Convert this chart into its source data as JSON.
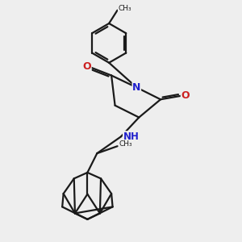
{
  "bg_color": "#eeeeee",
  "bond_color": "#1a1a1a",
  "N_color": "#2020cc",
  "O_color": "#cc2020",
  "NH_color": "#2020cc",
  "line_width": 1.6,
  "fig_size": [
    3.0,
    3.0
  ],
  "dpi": 100,
  "xlim": [
    0,
    10
  ],
  "ylim": [
    0,
    10
  ]
}
